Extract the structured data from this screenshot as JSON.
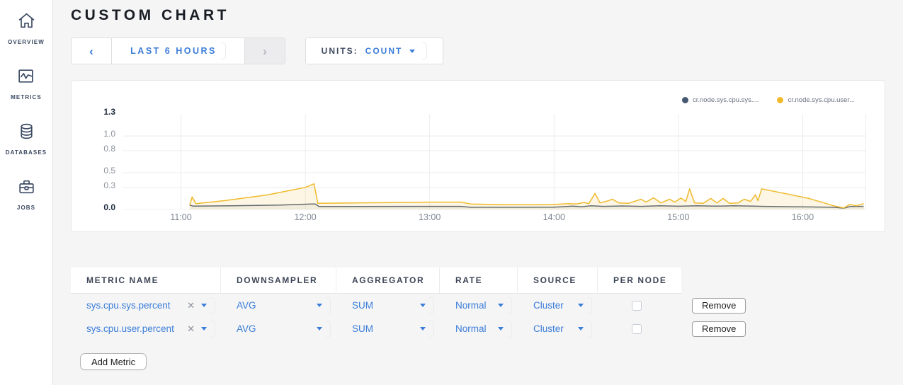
{
  "page": {
    "title": "CUSTOM CHART",
    "accent_blue": "#3b7dd8"
  },
  "sidebar": {
    "items": [
      {
        "label": "OVERVIEW",
        "icon": "home-icon"
      },
      {
        "label": "METRICS",
        "icon": "metrics-icon"
      },
      {
        "label": "DATABASES",
        "icon": "database-icon"
      },
      {
        "label": "JOBS",
        "icon": "briefcase-icon"
      }
    ]
  },
  "controls": {
    "time_range": {
      "label": "LAST 6 HOURS",
      "prev_enabled": true,
      "next_enabled": false
    },
    "units": {
      "label": "UNITS:",
      "value": "COUNT"
    }
  },
  "chart_data": {
    "type": "line",
    "title": "",
    "grid": true,
    "legend_position": "top-right",
    "x_domain_hours": [
      10.53,
      16.51
    ],
    "xticks": {
      "hours": [
        11,
        12,
        13,
        14,
        15,
        16
      ],
      "labels": [
        "11:00",
        "12:00",
        "13:00",
        "14:00",
        "15:00",
        "16:00"
      ]
    },
    "yticks": {
      "values": [
        0.0,
        0.3,
        0.5,
        0.8,
        1.0,
        1.3
      ],
      "labels": [
        "0.0",
        "0.3",
        "0.5",
        "0.8",
        "1.0",
        "1.3"
      ],
      "bold_labels": [
        "0.0",
        "1.3"
      ]
    },
    "ylim": [
      0,
      1.3
    ],
    "series": [
      {
        "name": "cr.node.sys.cpu.sys....",
        "color": "#51617a",
        "fill": "rgba(81,97,122,0.07)",
        "points": [
          [
            11.07,
            0.06
          ],
          [
            11.1,
            0.045
          ],
          [
            11.4,
            0.05
          ],
          [
            11.8,
            0.06
          ],
          [
            12.05,
            0.075
          ],
          [
            12.08,
            0.075
          ],
          [
            12.11,
            0.04
          ],
          [
            12.5,
            0.04
          ],
          [
            12.9,
            0.042
          ],
          [
            13.25,
            0.042
          ],
          [
            13.33,
            0.03
          ],
          [
            13.7,
            0.03
          ],
          [
            14.0,
            0.032
          ],
          [
            14.15,
            0.045
          ],
          [
            14.22,
            0.038
          ],
          [
            14.3,
            0.05
          ],
          [
            14.4,
            0.042
          ],
          [
            14.55,
            0.048
          ],
          [
            14.7,
            0.042
          ],
          [
            14.85,
            0.05
          ],
          [
            15.0,
            0.044
          ],
          [
            15.15,
            0.05
          ],
          [
            15.3,
            0.045
          ],
          [
            15.45,
            0.05
          ],
          [
            15.6,
            0.045
          ],
          [
            15.68,
            0.042
          ],
          [
            15.9,
            0.038
          ],
          [
            16.1,
            0.034
          ],
          [
            16.25,
            0.03
          ],
          [
            16.33,
            0.018
          ],
          [
            16.38,
            0.04
          ],
          [
            16.49,
            0.042
          ]
        ]
      },
      {
        "name": "cr.node.sys.cpu.user...",
        "color": "#efba2c",
        "fill": "rgba(239,186,44,0.13)",
        "points": [
          [
            11.07,
            0.06
          ],
          [
            11.09,
            0.17
          ],
          [
            11.12,
            0.08
          ],
          [
            11.35,
            0.12
          ],
          [
            11.7,
            0.2
          ],
          [
            12.0,
            0.3
          ],
          [
            12.07,
            0.35
          ],
          [
            12.1,
            0.085
          ],
          [
            12.4,
            0.09
          ],
          [
            12.8,
            0.095
          ],
          [
            13.0,
            0.1
          ],
          [
            13.25,
            0.1
          ],
          [
            13.33,
            0.075
          ],
          [
            13.6,
            0.065
          ],
          [
            13.95,
            0.065
          ],
          [
            14.12,
            0.08
          ],
          [
            14.18,
            0.075
          ],
          [
            14.24,
            0.095
          ],
          [
            14.28,
            0.08
          ],
          [
            14.33,
            0.22
          ],
          [
            14.37,
            0.09
          ],
          [
            14.42,
            0.11
          ],
          [
            14.47,
            0.14
          ],
          [
            14.52,
            0.09
          ],
          [
            14.6,
            0.085
          ],
          [
            14.7,
            0.14
          ],
          [
            14.74,
            0.1
          ],
          [
            14.8,
            0.16
          ],
          [
            14.86,
            0.09
          ],
          [
            14.93,
            0.14
          ],
          [
            14.97,
            0.1
          ],
          [
            15.02,
            0.155
          ],
          [
            15.06,
            0.11
          ],
          [
            15.09,
            0.28
          ],
          [
            15.13,
            0.09
          ],
          [
            15.2,
            0.085
          ],
          [
            15.26,
            0.15
          ],
          [
            15.31,
            0.09
          ],
          [
            15.36,
            0.15
          ],
          [
            15.41,
            0.085
          ],
          [
            15.48,
            0.09
          ],
          [
            15.53,
            0.14
          ],
          [
            15.58,
            0.11
          ],
          [
            15.62,
            0.2
          ],
          [
            15.64,
            0.12
          ],
          [
            15.67,
            0.28
          ],
          [
            15.85,
            0.22
          ],
          [
            16.05,
            0.15
          ],
          [
            16.25,
            0.05
          ],
          [
            16.33,
            0.02
          ],
          [
            16.38,
            0.07
          ],
          [
            16.43,
            0.05
          ],
          [
            16.49,
            0.08
          ]
        ]
      }
    ]
  },
  "table": {
    "columns": [
      "METRIC NAME",
      "DOWNSAMPLER",
      "AGGREGATOR",
      "RATE",
      "SOURCE",
      "PER NODE"
    ],
    "rows": [
      {
        "metric": "sys.cpu.sys.percent",
        "downsampler": "AVG",
        "aggregator": "SUM",
        "rate": "Normal",
        "source": "Cluster",
        "per_node": false,
        "remove_label": "Remove"
      },
      {
        "metric": "sys.cpu.user.percent",
        "downsampler": "AVG",
        "aggregator": "SUM",
        "rate": "Normal",
        "source": "Cluster",
        "per_node": false,
        "remove_label": "Remove"
      }
    ],
    "add_button_label": "Add Metric"
  }
}
